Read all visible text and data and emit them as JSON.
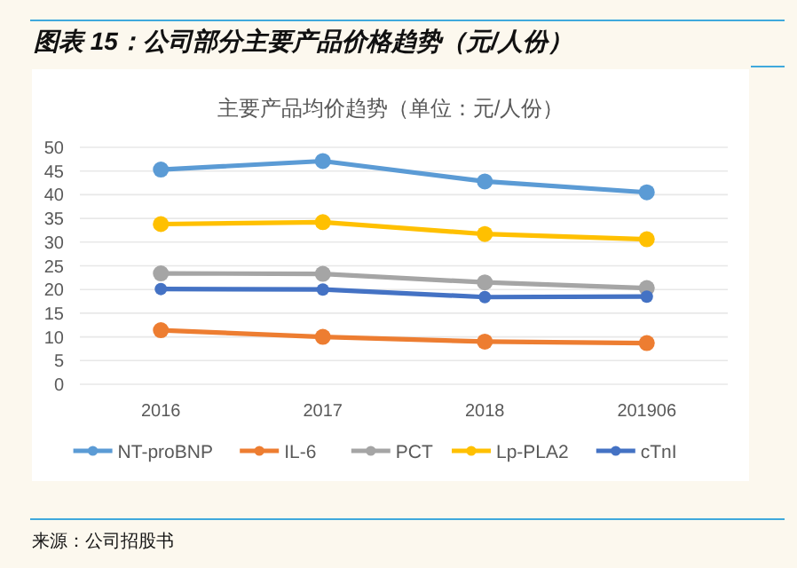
{
  "chart_data": {
    "type": "line",
    "title": "图表 15：公司部分主要产品价格趋势（元/人份）",
    "subtitle": "主要产品均价趋势（单位：元/人份）",
    "annotations": [
      "来源：公司招股书"
    ],
    "categories": [
      "2016",
      "2017",
      "2018",
      "201906"
    ],
    "series": [
      {
        "name": "NT-proBNP",
        "color": "#5b9bd5",
        "values": [
          45.3,
          47.1,
          42.8,
          40.5
        ]
      },
      {
        "name": "IL-6",
        "color": "#ed7d31",
        "values": [
          11.4,
          10.0,
          9.0,
          8.7
        ]
      },
      {
        "name": "PCT",
        "color": "#a5a5a5",
        "values": [
          23.4,
          23.3,
          21.5,
          20.3
        ]
      },
      {
        "name": "Lp-PLA2",
        "color": "#ffc000",
        "values": [
          33.8,
          34.2,
          31.7,
          30.6
        ]
      },
      {
        "name": "cTnI",
        "color": "#4472c4",
        "values": [
          20.1,
          20.0,
          18.4,
          18.5
        ]
      }
    ],
    "ylim": [
      0,
      50
    ],
    "yticks": [
      0,
      5,
      10,
      15,
      20,
      25,
      30,
      35,
      40,
      45,
      50
    ],
    "grid": "y",
    "legend": "bottom",
    "marker": "circle",
    "line_style": "solid"
  }
}
